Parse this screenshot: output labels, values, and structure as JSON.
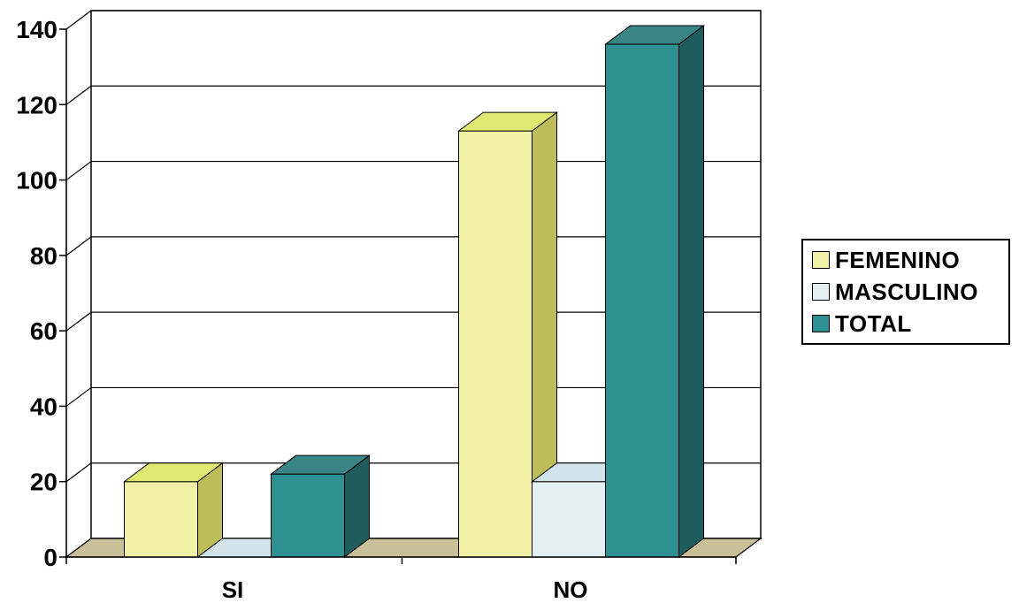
{
  "chart_data": {
    "type": "bar",
    "categories": [
      "SI",
      "NO"
    ],
    "series": [
      {
        "name": "FEMENINO",
        "values": [
          20,
          113
        ],
        "color": "#f1f2a6"
      },
      {
        "name": "MASCULINO",
        "values": [
          0,
          20
        ],
        "color": "#e3eff2"
      },
      {
        "name": "TOTAL",
        "values": [
          22,
          136
        ],
        "color": "#2e9091"
      }
    ],
    "ylim": [
      0,
      140
    ],
    "yticks": [
      0,
      20,
      40,
      60,
      80,
      100,
      120,
      140
    ],
    "grid": true,
    "three_d": true,
    "legend_position": "right",
    "title": "",
    "xlabel": "",
    "ylabel": ""
  }
}
